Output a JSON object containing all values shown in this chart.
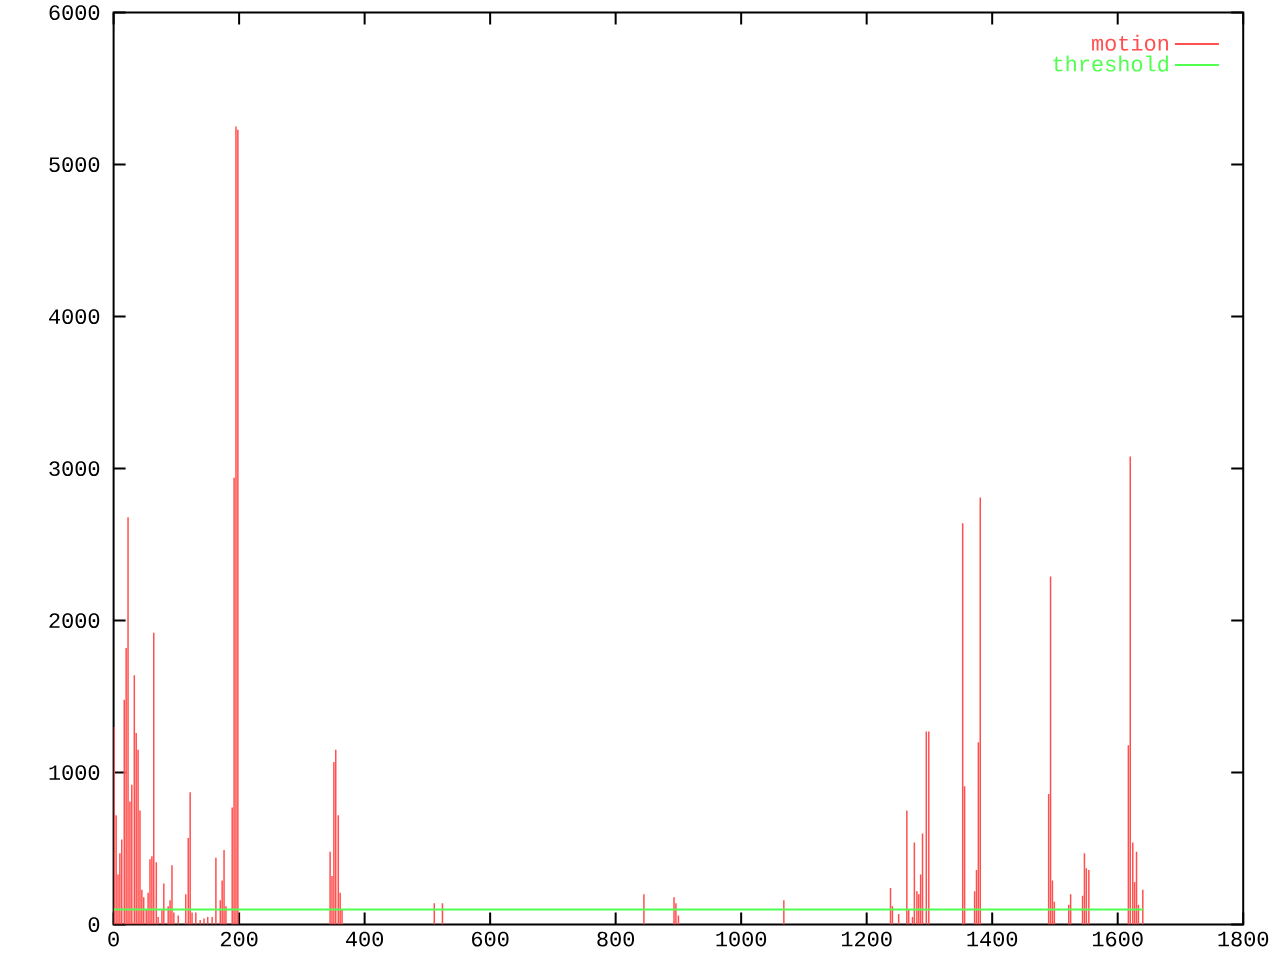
{
  "chart_data": {
    "type": "bar",
    "xlim": [
      0,
      1800
    ],
    "ylim": [
      0,
      6000
    ],
    "xticks": [
      0,
      200,
      400,
      600,
      800,
      1000,
      1200,
      1400,
      1600,
      1800
    ],
    "yticks": [
      0,
      1000,
      2000,
      3000,
      4000,
      5000,
      6000
    ],
    "legend": "top right",
    "series": [
      {
        "name": "motion",
        "color": "#ff5050",
        "x": [
          1,
          4,
          7,
          10,
          13,
          17,
          20,
          23,
          26,
          29,
          33,
          36,
          39,
          42,
          45,
          48,
          52,
          55,
          58,
          61,
          64,
          68,
          71,
          77,
          80,
          87,
          90,
          93,
          96,
          103,
          115,
          119,
          122,
          125,
          131,
          138,
          144,
          150,
          157,
          163,
          170,
          173,
          176,
          179,
          189,
          192,
          195,
          198,
          345,
          348,
          351,
          354,
          358,
          361,
          364,
          511,
          524,
          845,
          893,
          896,
          900,
          1068,
          1238,
          1241,
          1251,
          1264,
          1267,
          1273,
          1276,
          1280,
          1283,
          1286,
          1289,
          1295,
          1299,
          1353,
          1356,
          1372,
          1375,
          1378,
          1381,
          1490,
          1493,
          1496,
          1499,
          1522,
          1525,
          1544,
          1547,
          1550,
          1554,
          1617,
          1620,
          1624,
          1627,
          1630,
          1633,
          1640
        ],
        "values": [
          1300,
          720,
          330,
          470,
          560,
          1480,
          1820,
          2680,
          810,
          920,
          1640,
          1260,
          1150,
          750,
          230,
          180,
          100,
          210,
          430,
          450,
          1920,
          410,
          50,
          100,
          270,
          120,
          160,
          390,
          80,
          60,
          200,
          570,
          870,
          80,
          80,
          30,
          40,
          50,
          50,
          440,
          160,
          290,
          490,
          120,
          770,
          2940,
          5250,
          5230,
          480,
          320,
          1070,
          1150,
          720,
          210,
          100,
          140,
          140,
          200,
          180,
          140,
          60,
          160,
          240,
          120,
          70,
          750,
          100,
          50,
          540,
          220,
          200,
          330,
          600,
          1270,
          1270,
          2640,
          910,
          220,
          360,
          1200,
          2810,
          860,
          2290,
          290,
          150,
          130,
          200,
          190,
          470,
          370,
          360,
          1180,
          3080,
          540,
          280,
          480,
          130,
          230
        ]
      },
      {
        "name": "threshold",
        "type": "line",
        "color": "#50ff50",
        "x": [
          0,
          1641
        ],
        "values": [
          100,
          100
        ]
      }
    ]
  }
}
